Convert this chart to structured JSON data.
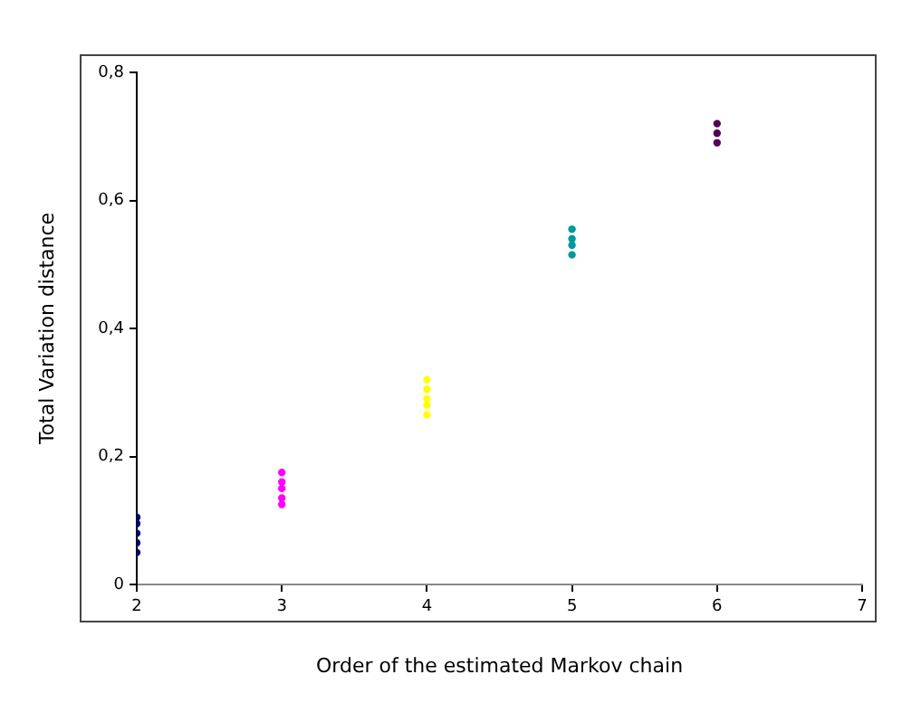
{
  "chart_data": {
    "type": "scatter",
    "xlabel": "Order of the estimated Markov chain",
    "ylabel": "Total Variation distance",
    "xlim": [
      2,
      7
    ],
    "xticks": [
      2,
      3,
      4,
      5,
      6,
      7
    ],
    "ylim": [
      0,
      0.8
    ],
    "yticks": [
      0,
      {
        "value": 0.2,
        "label": "0,2"
      },
      {
        "value": 0.4,
        "label": "0,4"
      },
      {
        "value": 0.6,
        "label": "0,6"
      },
      {
        "value": 0.8,
        "label": "0,8"
      }
    ],
    "grid": false,
    "legend": false,
    "marker": "circle",
    "series": [
      {
        "color": "#000080",
        "x": [
          2,
          2,
          2,
          2,
          2
        ],
        "values": [
          0.05,
          0.065,
          0.08,
          0.095,
          0.105
        ]
      },
      {
        "color": "#ff00ff",
        "x": [
          3,
          3,
          3,
          3,
          3
        ],
        "values": [
          0.125,
          0.135,
          0.15,
          0.16,
          0.175
        ]
      },
      {
        "color": "#ffff00",
        "x": [
          4,
          4,
          4,
          4,
          4
        ],
        "values": [
          0.265,
          0.28,
          0.29,
          0.305,
          0.32
        ]
      },
      {
        "color": "#009999",
        "x": [
          5,
          5,
          5,
          5
        ],
        "values": [
          0.515,
          0.53,
          0.54,
          0.555
        ]
      },
      {
        "color": "#550055",
        "x": [
          6,
          6,
          6
        ],
        "values": [
          0.69,
          0.705,
          0.72
        ]
      }
    ]
  }
}
